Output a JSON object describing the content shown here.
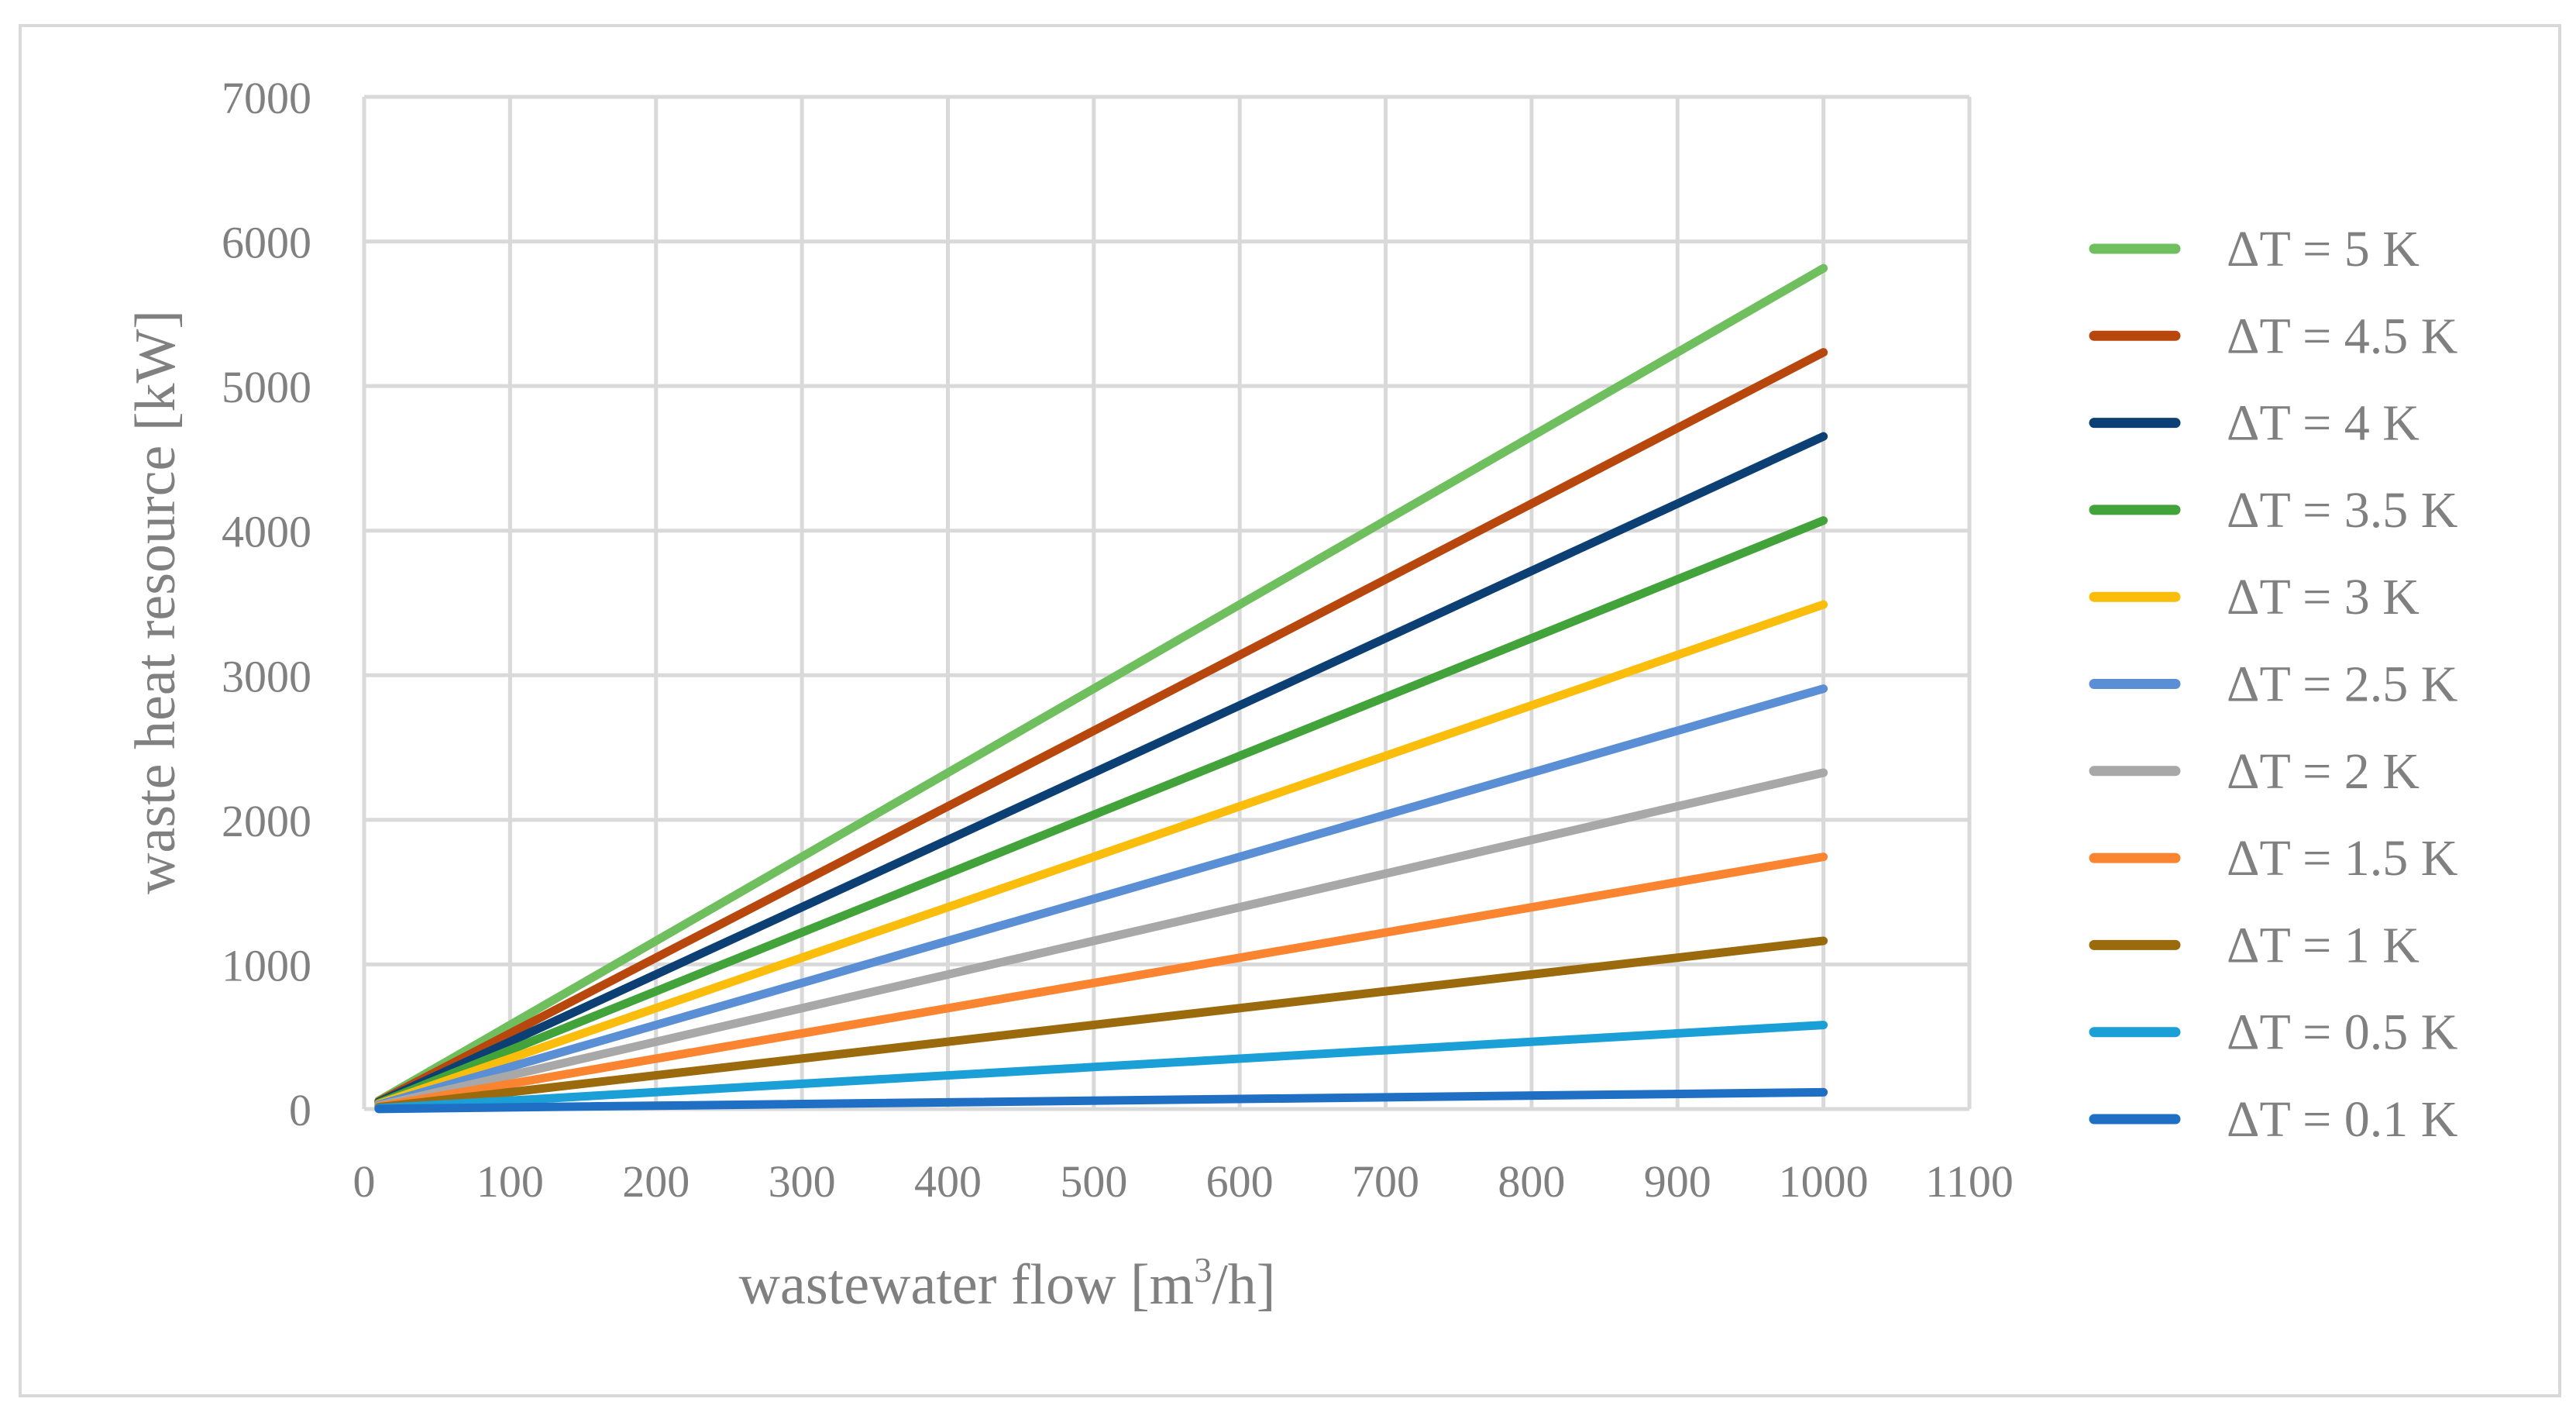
{
  "chart_data": {
    "type": "line",
    "title": "",
    "xlabel_parts": {
      "prefix": "wastewater flow [m",
      "superscript": "3",
      "suffix": "/h]"
    },
    "ylabel": "waste heat resource [kW]",
    "xlim": [
      0,
      1100
    ],
    "ylim": [
      0,
      7000
    ],
    "xticks": [
      "0",
      "100",
      "200",
      "300",
      "400",
      "500",
      "600",
      "700",
      "800",
      "900",
      "1000",
      "1100"
    ],
    "yticks": [
      "0",
      "1000",
      "2000",
      "3000",
      "4000",
      "5000",
      "6000",
      "7000"
    ],
    "x_values": [
      10,
      1000
    ],
    "grid": true,
    "legend_position": "right",
    "series": [
      {
        "name": "ΔT = 5 K",
        "color": "#70bf5f",
        "values": [
          58,
          5815
        ]
      },
      {
        "name": "ΔT = 4.5 K",
        "color": "#b8470d",
        "values": [
          52,
          5233
        ]
      },
      {
        "name": "ΔT = 4 K",
        "color": "#0c3f73",
        "values": [
          47,
          4652
        ]
      },
      {
        "name": "ΔT = 3.5 K",
        "color": "#42a33a",
        "values": [
          41,
          4070
        ]
      },
      {
        "name": "ΔT = 3 K",
        "color": "#fbbd0b",
        "values": [
          35,
          3489
        ]
      },
      {
        "name": "ΔT = 2.5 K",
        "color": "#5a8ed5",
        "values": [
          29,
          2907
        ]
      },
      {
        "name": "ΔT = 2 K",
        "color": "#a8a8a8",
        "values": [
          23,
          2326
        ]
      },
      {
        "name": "ΔT = 1.5 K",
        "color": "#fb8431",
        "values": [
          17,
          1744
        ]
      },
      {
        "name": "ΔT = 1 K",
        "color": "#9b6a0d",
        "values": [
          12,
          1163
        ]
      },
      {
        "name": "ΔT = 0.5 K",
        "color": "#1a9fd7",
        "values": [
          6,
          581
        ]
      },
      {
        "name": "ΔT = 0.1 K",
        "color": "#1f6fc5",
        "values": [
          1,
          116
        ]
      }
    ]
  }
}
